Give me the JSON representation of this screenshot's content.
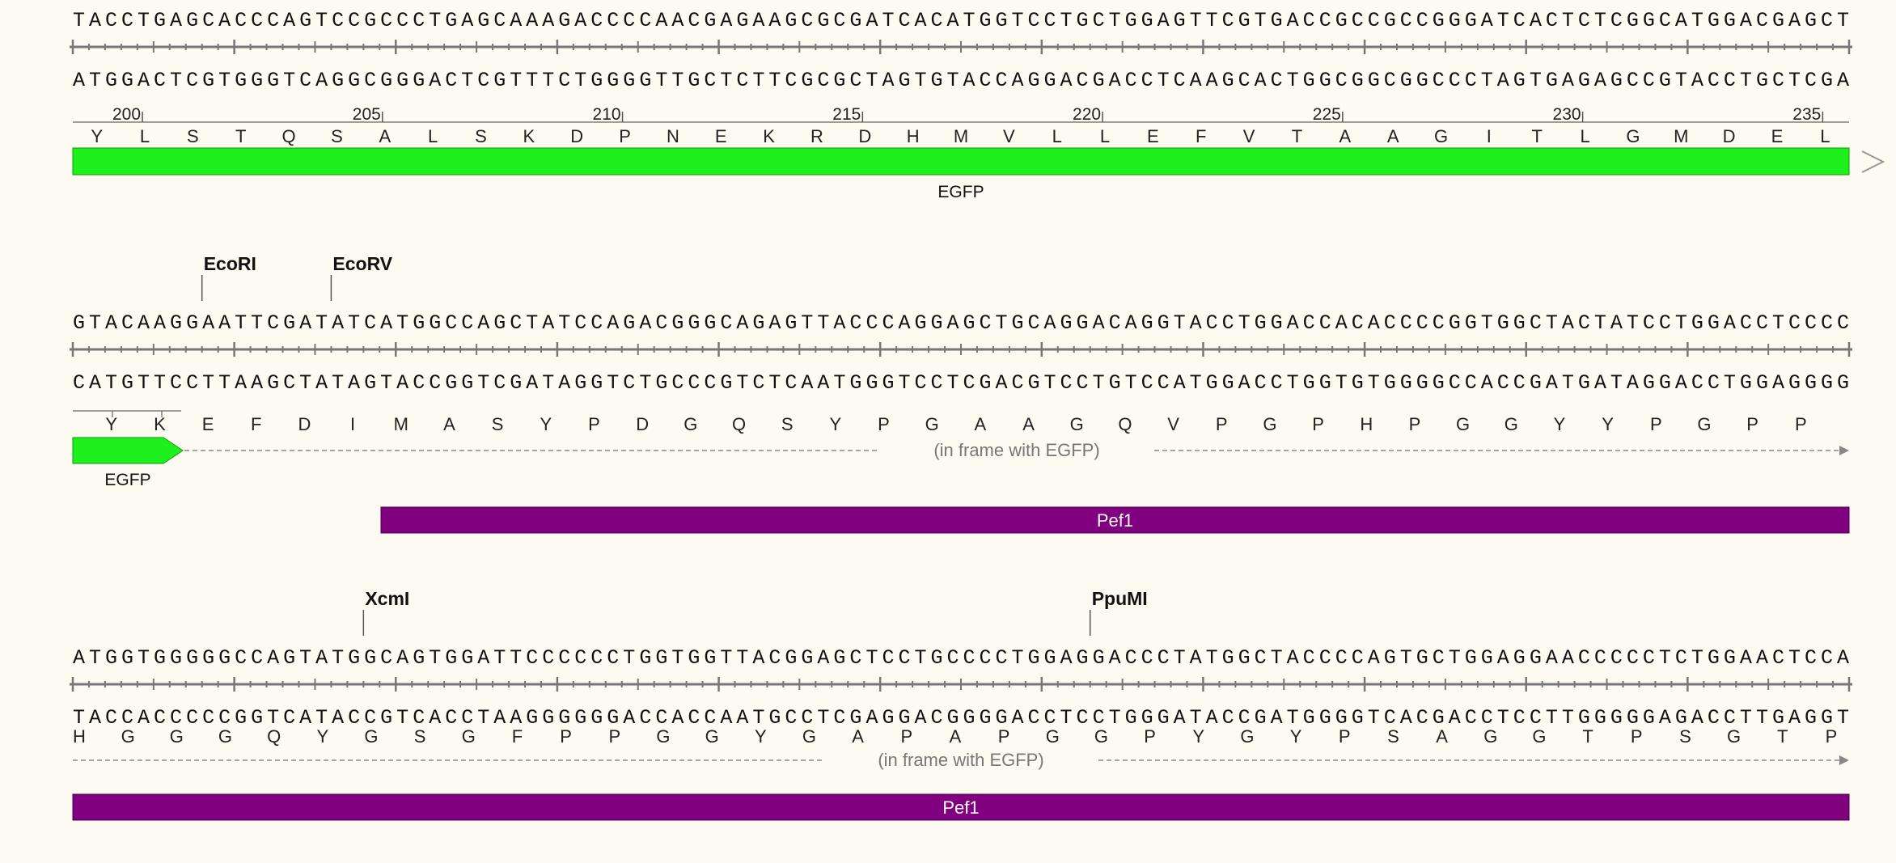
{
  "colors": {
    "background": "#fdfaf1",
    "ruler": "#777777",
    "egfp": "#1ef01e",
    "pef1": "#800080",
    "dashed": "#888888"
  },
  "rows": [
    {
      "top": "TACCTGAGCACCCAGTCCGCCCTGAGCAAAGACCCCAACGAGAAGCGCGATCACATGGTCCTGCTGGAGTTCGTGACCGCCGCCGGGATCACTCTCGGCATGGACGAGCT",
      "bottom": "ATGGACTCGTGGGTCAGGCGGGACTCGTTTCTGGGGTTGCTCTTCGCGCTAGTGTACCAGGACGACCTCAAGCACTGGCGGCGGCCCTAGTGAGAGCCGTACCTGCTCGA",
      "sites": [],
      "aa_numbers": [
        "200",
        "205",
        "210",
        "215",
        "220",
        "225",
        "230",
        "235"
      ],
      "aa": [
        "Y",
        "L",
        "S",
        "T",
        "Q",
        "S",
        "A",
        "L",
        "S",
        "K",
        "D",
        "P",
        "N",
        "E",
        "K",
        "R",
        "D",
        "H",
        "M",
        "V",
        "L",
        "L",
        "E",
        "F",
        "V",
        "T",
        "A",
        "A",
        "G",
        "I",
        "T",
        "L",
        "G",
        "M",
        "D",
        "E",
        "L"
      ],
      "feature": {
        "label": "EGFP",
        "continues": true
      }
    },
    {
      "top": "GTACAAGGAATTCGATATCATGGCCAGCTATCCAGACGGGCAGAGTTACCCAGGAGCTGCAGGACAGGTACCTGGACCACACCCCGGTGGCTACTATCCTGGACCTCCCC",
      "bottom": "CATGTTCCTTAAGCTATAGTACCGGTCGATAGGTCTGCCCGTCTCAATGGGTCCTCGACGTCCTGTCCATGGACCTGGTGTGGGGCCACCGATGATAGGACCTGGAGGGG",
      "sites": [
        {
          "name": "EcoRI",
          "pos": 8
        },
        {
          "name": "EcoRV",
          "pos": 16
        }
      ],
      "aa": [
        "Y",
        "K",
        "E",
        "F",
        "D",
        "I",
        "M",
        "A",
        "S",
        "Y",
        "P",
        "D",
        "G",
        "Q",
        "S",
        "Y",
        "P",
        "G",
        "A",
        "A",
        "G",
        "Q",
        "V",
        "P",
        "G",
        "P",
        "H",
        "P",
        "G",
        "G",
        "Y",
        "Y",
        "P",
        "G",
        "P",
        "P"
      ],
      "feature": {
        "label": "EGFP",
        "continues": false
      },
      "frame_note": "(in frame with EGFP)",
      "bar": {
        "label": "Pef1"
      }
    },
    {
      "top": "ATGGTGGGGGCCAGTATGGCAGTGGATTCCCCCCTGGTGGTTACGGAGCTCCTGCCCCTGGAGGACCCTATGGCTACCCCAGTGCTGGAGGAACCCCCTCTGGAACTCCA",
      "bottom": "TACCACCCCCGGTCATACCGTCACCTAAGGGGGGACCACCAATGCCTCGAGGACGGGGACCTCCTGGGATACCGATGGGGTCACGACCTCCTTGGGGGAGACCTTGAGGT",
      "sites": [
        {
          "name": "XcmI",
          "pos": 18
        },
        {
          "name": "PpuMI",
          "pos": 63
        }
      ],
      "aa": [
        "H",
        "G",
        "G",
        "G",
        "Q",
        "Y",
        "G",
        "S",
        "G",
        "F",
        "P",
        "P",
        "G",
        "G",
        "Y",
        "G",
        "A",
        "P",
        "A",
        "P",
        "G",
        "G",
        "P",
        "Y",
        "G",
        "Y",
        "P",
        "S",
        "A",
        "G",
        "G",
        "T",
        "P",
        "S",
        "G",
        "T",
        "P"
      ],
      "frame_note": "(in frame with EGFP)",
      "bar": {
        "label": "Pef1"
      }
    }
  ]
}
